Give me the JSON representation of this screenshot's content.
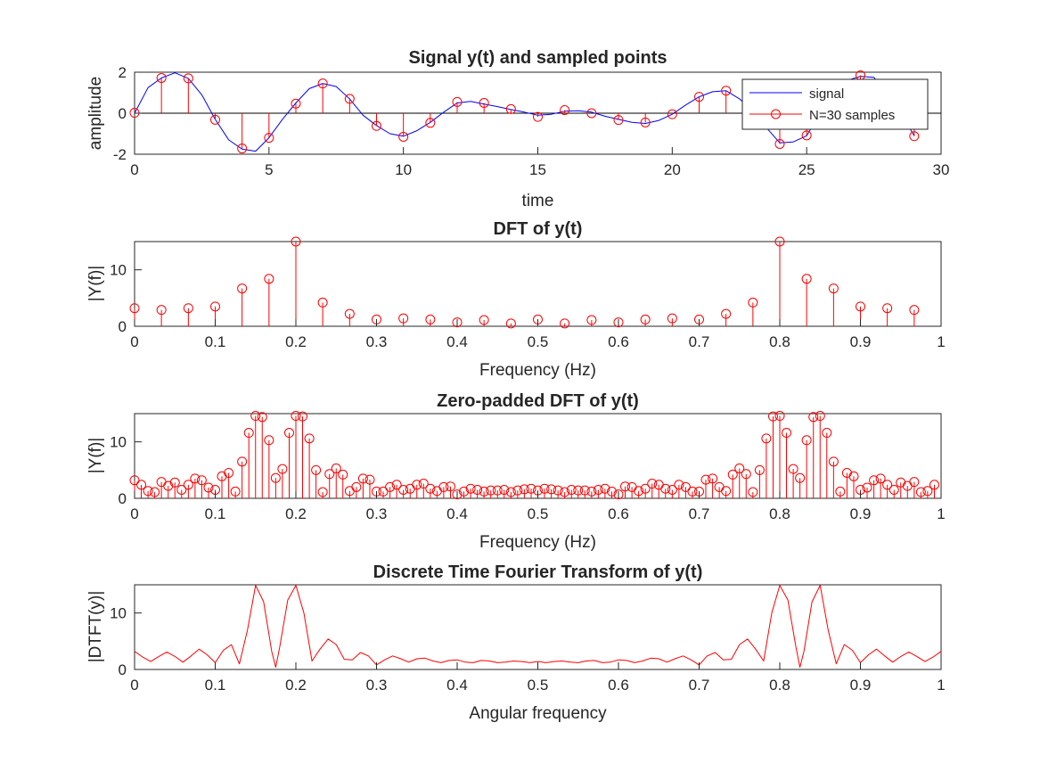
{
  "figure": {
    "colors": {
      "signal": "#0000ff",
      "samples": "#ff0000",
      "axes": "#262626",
      "background": "#ffffff"
    }
  },
  "chart_data": [
    {
      "type": "line",
      "title": "Signal y(t) and sampled points",
      "xlabel": "time",
      "ylabel": "amplitude",
      "xlim": [
        0,
        30
      ],
      "ylim": [
        -2,
        2
      ],
      "xticks": [
        0,
        5,
        10,
        15,
        20,
        25,
        30
      ],
      "yticks": [
        -2,
        0,
        2
      ],
      "legend": {
        "placement": "top-right",
        "entries": [
          "signal",
          "N=30 samples"
        ]
      },
      "series": [
        {
          "name": "signal",
          "style": "line",
          "color": "#0000ff",
          "x": [
            0,
            0.5,
            1,
            1.5,
            2,
            2.5,
            3,
            3.5,
            4,
            4.5,
            5,
            5.5,
            6,
            6.5,
            7,
            7.5,
            8,
            8.5,
            9,
            9.5,
            10,
            10.5,
            11,
            11.5,
            12,
            12.5,
            13,
            13.5,
            14,
            14.5,
            15,
            15.5,
            16,
            16.5,
            17,
            17.5,
            18,
            18.5,
            19,
            19.5,
            20,
            20.5,
            21,
            21.5,
            22,
            22.5,
            23,
            23.5,
            24,
            24.5,
            25,
            25.5,
            26,
            26.5,
            27,
            27.5,
            28,
            28.5,
            29
          ],
          "y": [
            0.0,
            1.25,
            1.72,
            1.97,
            1.7,
            0.9,
            -0.3,
            -1.3,
            -1.75,
            -1.85,
            -1.2,
            -0.3,
            0.5,
            1.2,
            1.45,
            1.3,
            0.7,
            -0.1,
            -0.6,
            -1.0,
            -1.12,
            -0.85,
            -0.45,
            0.05,
            0.5,
            0.58,
            0.45,
            0.32,
            0.18,
            0.05,
            -0.1,
            -0.05,
            0.1,
            0.12,
            0.05,
            -0.15,
            -0.3,
            -0.45,
            -0.5,
            -0.35,
            -0.05,
            0.4,
            0.8,
            1.05,
            1.1,
            0.7,
            0.1,
            -0.7,
            -1.45,
            -1.4,
            -1.1,
            0.0,
            1.1,
            1.6,
            1.8,
            1.75,
            1.0,
            0.0,
            -1.1
          ]
        },
        {
          "name": "N=30 samples",
          "style": "stem",
          "color": "#ff0000",
          "x": [
            0,
            1,
            2,
            3,
            4,
            5,
            6,
            7,
            8,
            9,
            10,
            11,
            12,
            13,
            14,
            15,
            16,
            17,
            18,
            19,
            20,
            21,
            22,
            23,
            24,
            25,
            26,
            27,
            28,
            29
          ],
          "y": [
            0.02,
            1.72,
            1.7,
            -0.32,
            -1.72,
            -1.2,
            0.47,
            1.45,
            0.7,
            -0.62,
            -1.15,
            -0.47,
            0.55,
            0.5,
            0.2,
            -0.18,
            0.15,
            0.0,
            -0.33,
            -0.45,
            -0.05,
            0.8,
            1.1,
            0.0,
            -1.5,
            -1.08,
            0.0,
            1.85,
            0.0,
            -1.12
          ]
        }
      ]
    },
    {
      "type": "stem",
      "title": "DFT of y(t)",
      "xlabel": "Frequency (Hz)",
      "ylabel": "|Y(f)|",
      "xlim": [
        0,
        1
      ],
      "ylim": [
        0,
        15
      ],
      "xticks": [
        0,
        0.1,
        0.2,
        0.3,
        0.4,
        0.5,
        0.6,
        0.7,
        0.8,
        0.9,
        1
      ],
      "yticks": [
        0,
        10
      ],
      "series": [
        {
          "color": "#ff0000",
          "x": [
            0,
            0.0333,
            0.0667,
            0.1,
            0.1333,
            0.1667,
            0.2,
            0.2333,
            0.2667,
            0.3,
            0.3333,
            0.3667,
            0.4,
            0.4333,
            0.4667,
            0.5,
            0.5333,
            0.5667,
            0.6,
            0.6333,
            0.6667,
            0.7,
            0.7333,
            0.7667,
            0.8,
            0.8333,
            0.8667,
            0.9,
            0.9333,
            0.9667
          ],
          "y": [
            3.2,
            2.9,
            3.2,
            3.5,
            6.7,
            8.4,
            15.0,
            4.2,
            2.2,
            1.2,
            1.4,
            1.2,
            0.7,
            1.1,
            0.5,
            1.2,
            0.5,
            1.1,
            0.7,
            1.2,
            1.4,
            1.2,
            2.2,
            4.2,
            15.0,
            8.4,
            6.7,
            3.5,
            3.2,
            2.9
          ]
        }
      ]
    },
    {
      "type": "stem",
      "title": "Zero-padded DFT of y(t)",
      "xlabel": "Frequency (Hz)",
      "ylabel": "|Y(f)|",
      "xlim": [
        0,
        1
      ],
      "ylim": [
        0,
        15
      ],
      "xticks": [
        0,
        0.1,
        0.2,
        0.3,
        0.4,
        0.5,
        0.6,
        0.7,
        0.8,
        0.9,
        1
      ],
      "yticks": [
        0,
        10
      ],
      "series": [
        {
          "color": "#ff0000",
          "x": [
            0,
            0.0083,
            0.0167,
            0.025,
            0.0333,
            0.0417,
            0.05,
            0.0583,
            0.0667,
            0.075,
            0.0833,
            0.0917,
            0.1,
            0.1083,
            0.1167,
            0.125,
            0.1333,
            0.1417,
            0.15,
            0.1583,
            0.1667,
            0.175,
            0.1833,
            0.1917,
            0.2,
            0.2083,
            0.2167,
            0.225,
            0.2333,
            0.2417,
            0.25,
            0.2583,
            0.2667,
            0.275,
            0.2833,
            0.2917,
            0.3,
            0.3083,
            0.3167,
            0.325,
            0.3333,
            0.3417,
            0.35,
            0.3583,
            0.3667,
            0.375,
            0.3833,
            0.3917,
            0.4,
            0.4083,
            0.4167,
            0.425,
            0.4333,
            0.4417,
            0.45,
            0.4583,
            0.4667,
            0.475,
            0.4833,
            0.4917,
            0.5,
            0.5083,
            0.5167,
            0.525,
            0.5333,
            0.5417,
            0.55,
            0.5583,
            0.5667,
            0.575,
            0.5833,
            0.5917,
            0.6,
            0.6083,
            0.6167,
            0.625,
            0.6333,
            0.6417,
            0.65,
            0.6583,
            0.6667,
            0.675,
            0.6833,
            0.6917,
            0.7,
            0.7083,
            0.7167,
            0.725,
            0.7333,
            0.7417,
            0.75,
            0.7583,
            0.7667,
            0.775,
            0.7833,
            0.7917,
            0.8,
            0.8083,
            0.8167,
            0.825,
            0.8333,
            0.8417,
            0.85,
            0.8583,
            0.8667,
            0.875,
            0.8833,
            0.8917,
            0.9,
            0.9083,
            0.9167,
            0.925,
            0.9333,
            0.9417,
            0.95,
            0.9583,
            0.9667,
            0.975,
            0.9833,
            0.9917
          ],
          "y": [
            3.2,
            2.4,
            1.3,
            1.1,
            2.9,
            2.2,
            2.8,
            1.5,
            2.4,
            3.5,
            3.2,
            1.9,
            1.5,
            3.9,
            4.5,
            1.2,
            6.5,
            11.6,
            14.6,
            14.4,
            10.3,
            3.6,
            5.2,
            11.6,
            14.6,
            14.5,
            10.6,
            5.0,
            1.1,
            4.3,
            5.3,
            4.2,
            1.3,
            2.0,
            3.5,
            3.3,
            1.2,
            1.2,
            2.0,
            2.4,
            1.5,
            1.7,
            2.4,
            2.6,
            1.7,
            1.3,
            2.0,
            2.1,
            0.7,
            1.2,
            1.7,
            1.5,
            1.2,
            1.4,
            1.4,
            1.5,
            1.1,
            1.4,
            1.6,
            1.7,
            1.4,
            1.7,
            1.6,
            1.4,
            1.1,
            1.5,
            1.4,
            1.4,
            1.2,
            1.5,
            1.7,
            1.2,
            0.7,
            2.1,
            2.0,
            1.3,
            1.7,
            2.6,
            2.4,
            1.7,
            1.5,
            2.4,
            2.0,
            1.2,
            1.2,
            3.3,
            3.5,
            2.0,
            1.3,
            4.2,
            5.3,
            4.3,
            1.1,
            5.0,
            10.6,
            14.5,
            14.6,
            11.6,
            5.2,
            3.6,
            10.3,
            14.4,
            14.6,
            11.6,
            6.5,
            1.2,
            4.5,
            3.9,
            1.5,
            1.9,
            3.2,
            3.5,
            2.4,
            1.5,
            2.8,
            2.2,
            2.9,
            1.1,
            1.3,
            2.4
          ]
        }
      ]
    },
    {
      "type": "line",
      "title": "Discrete Time Fourier Transform of y(t)",
      "xlabel": "Angular frequency",
      "ylabel": "|DTFT(y)|",
      "xlim": [
        0,
        1
      ],
      "ylim": [
        0,
        15
      ],
      "xticks": [
        0,
        0.1,
        0.2,
        0.3,
        0.4,
        0.5,
        0.6,
        0.7,
        0.8,
        0.9,
        1
      ],
      "yticks": [
        0,
        10
      ],
      "series": [
        {
          "color": "#ff0000",
          "x": [
            0,
            0.01,
            0.02,
            0.03,
            0.04,
            0.05,
            0.06,
            0.07,
            0.08,
            0.09,
            0.1,
            0.11,
            0.12,
            0.13,
            0.14,
            0.15,
            0.16,
            0.17,
            0.175,
            0.18,
            0.19,
            0.2,
            0.21,
            0.22,
            0.23,
            0.24,
            0.25,
            0.26,
            0.27,
            0.28,
            0.29,
            0.3,
            0.31,
            0.32,
            0.33,
            0.34,
            0.35,
            0.36,
            0.37,
            0.38,
            0.39,
            0.4,
            0.41,
            0.42,
            0.43,
            0.44,
            0.45,
            0.46,
            0.47,
            0.48,
            0.49,
            0.5,
            0.51,
            0.52,
            0.53,
            0.54,
            0.55,
            0.56,
            0.57,
            0.58,
            0.59,
            0.6,
            0.61,
            0.62,
            0.63,
            0.64,
            0.65,
            0.66,
            0.67,
            0.68,
            0.69,
            0.7,
            0.71,
            0.72,
            0.73,
            0.74,
            0.75,
            0.76,
            0.77,
            0.78,
            0.79,
            0.8,
            0.81,
            0.82,
            0.825,
            0.83,
            0.84,
            0.85,
            0.86,
            0.87,
            0.88,
            0.89,
            0.9,
            0.91,
            0.92,
            0.93,
            0.94,
            0.95,
            0.96,
            0.97,
            0.98,
            0.99,
            1
          ],
          "y": [
            3.2,
            2.2,
            1.4,
            2.3,
            3.1,
            2.3,
            1.3,
            2.4,
            3.6,
            2.6,
            1.2,
            3.4,
            4.4,
            1.0,
            7.0,
            14.9,
            12.0,
            3.2,
            0.4,
            4.0,
            12.3,
            14.9,
            10.0,
            1.5,
            3.6,
            5.4,
            4.4,
            1.8,
            1.7,
            3.0,
            2.4,
            0.8,
            1.7,
            2.4,
            1.9,
            1.3,
            1.9,
            2.0,
            1.5,
            1.2,
            1.6,
            1.7,
            1.3,
            1.2,
            1.6,
            1.5,
            1.2,
            1.3,
            1.5,
            1.4,
            1.2,
            1.4,
            1.2,
            1.4,
            1.5,
            1.3,
            1.2,
            1.5,
            1.6,
            1.2,
            1.3,
            1.7,
            1.6,
            1.2,
            1.5,
            2.0,
            1.9,
            1.3,
            1.9,
            2.4,
            1.7,
            0.8,
            2.4,
            3.0,
            1.7,
            1.8,
            4.4,
            5.4,
            3.6,
            1.5,
            10.0,
            14.9,
            12.3,
            4.0,
            0.4,
            3.2,
            12.0,
            14.9,
            7.0,
            1.0,
            4.4,
            3.4,
            1.2,
            2.6,
            3.6,
            2.4,
            1.3,
            2.3,
            3.1,
            2.3,
            1.4,
            2.2,
            3.2
          ]
        }
      ]
    }
  ]
}
